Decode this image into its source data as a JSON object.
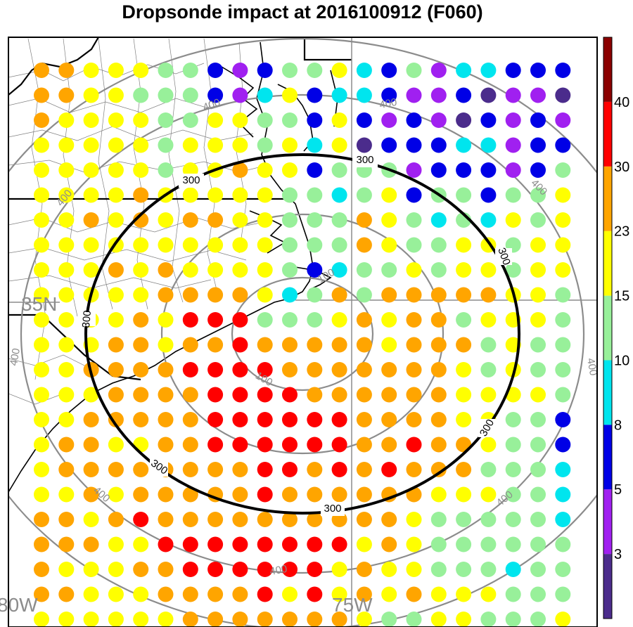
{
  "title": "Dropsonde impact at 2016100912 (F060)",
  "axis_labels": {
    "lat_35": "35N",
    "lon_80": "80W",
    "lon_75": "75W"
  },
  "range_ring_labels": {
    "r100": "100",
    "r300": "300",
    "r400": "400"
  },
  "colorbar": {
    "labels": [
      "3",
      "5",
      "8",
      "10",
      "15",
      "23",
      "30",
      "40"
    ],
    "colors": [
      "#4b2c8c",
      "#a020f0",
      "#0000e6",
      "#00e5ee",
      "#98f09a",
      "#ffff00",
      "#ffa500",
      "#ff0000",
      "#8b0000"
    ]
  },
  "colors": {
    "S": "#4b2c8c",
    "P": "#a020f0",
    "B": "#0000e6",
    "C": "#00e5ee",
    "G": "#98f09a",
    "Y": "#ffff00",
    "O": "#ffa500",
    "R": "#ff0000",
    "D": "#8b0000"
  },
  "grid": [
    "OOYYYGGBPBGGYCBGPCCBBB",
    "OOYYGGGBPCYBCCBPPBSPPS",
    "OYYYYGGYYGGBYBPBPSBPBP",
    "YYYYYGYYYGYCYSBBBCCPBB",
    "YYYYYGYYOYYBGGGPBBBPBG",
    "YYYYOYYYYYGGCGYBGGBGGY",
    "YYOYOYOOYYGGGOYGCGCYGY",
    "YYYYYYYYYYGGGOYGGYYGYY",
    "YYYOYOYYYYGBCGGYGYYGYY",
    "YYYYYOOOOYCGOGOOOOOYYG",
    "YYYYOYRRRGGGYOYOOGYYYG",
    "YYYOOYOOROOOOOYOOOGYGG",
    "YYOOOORRRROOOOOOOYGYGG",
    "YYYOOOORRRROOOOOOYYYYG",
    "YYOOOOORRRRRROOOOYYGGB",
    "YOOYYOORRRRRROOROOYGGB",
    "YOOOOOOOORROROROOOGGGC",
    "YYOYOOOOOROOOOOOYYYGGC",
    "OOYOROOOOOOOOOOYGGGGGC",
    "OOOYYRRRRRRRRYOYGGGGGG",
    "OYYYOORRRRRRYOYYGGGCGG",
    "OOYYYOOOORYRYOYOYYYGGG",
    "YYYYYYOOOOOOOYGGYYGGGY"
  ]
}
